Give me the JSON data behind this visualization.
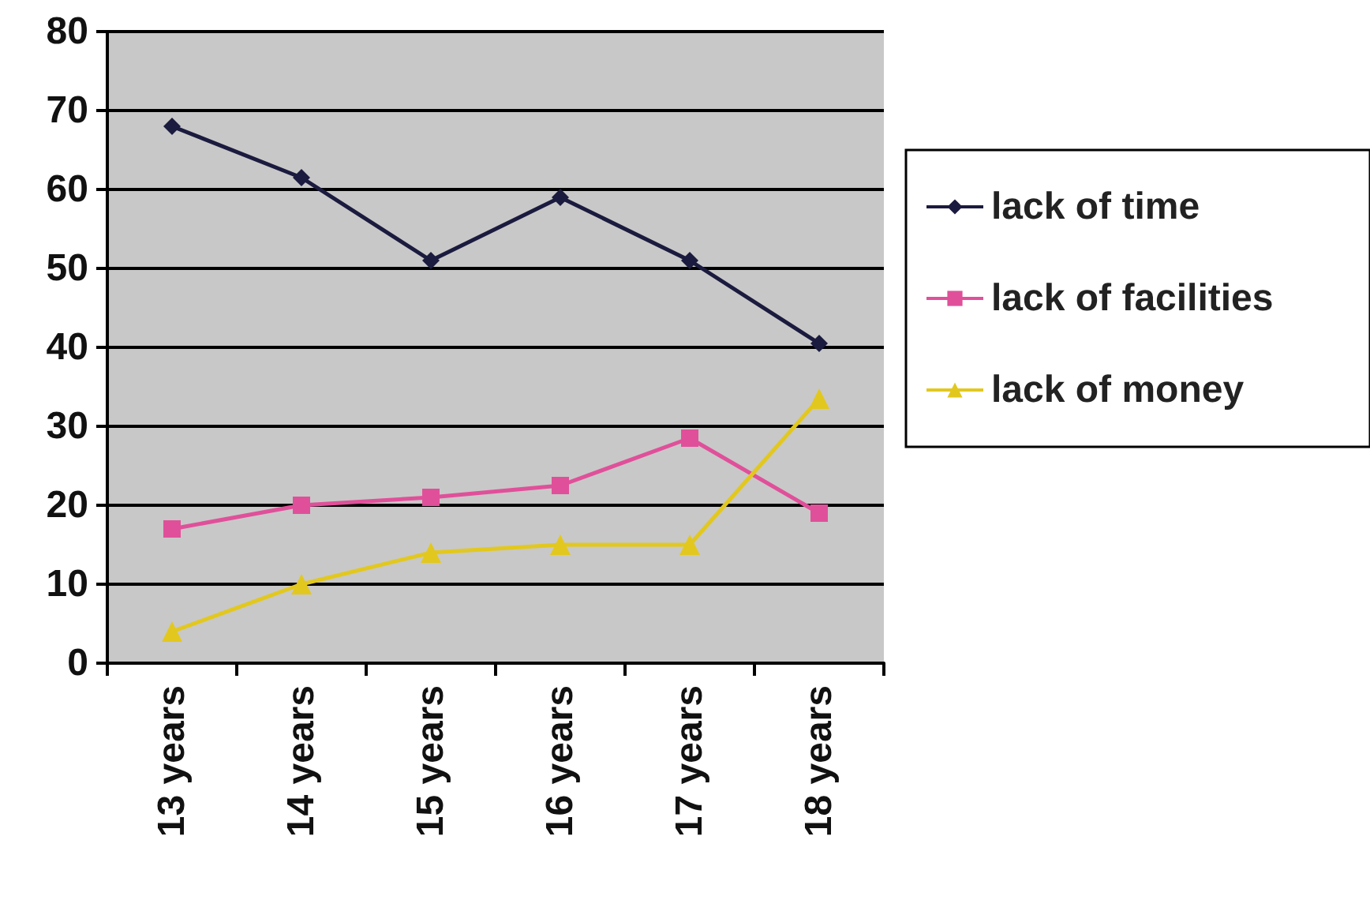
{
  "chart_data": {
    "type": "line",
    "categories": [
      "13 years",
      "14 years",
      "15 years",
      "16 years",
      "17 years",
      "18 years"
    ],
    "series": [
      {
        "name": "lack of time",
        "color": "#1b1b3f",
        "marker": "diamond",
        "values": [
          68,
          61.5,
          51,
          59,
          51,
          40.5
        ]
      },
      {
        "name": "lack of facilities",
        "color": "#e0509a",
        "marker": "square",
        "values": [
          17,
          20,
          21,
          22.5,
          28.5,
          19
        ]
      },
      {
        "name": "lack of money",
        "color": "#e2c81e",
        "marker": "triangle",
        "values": [
          4,
          10,
          14,
          15,
          15,
          33.5
        ]
      }
    ],
    "ylim": [
      0,
      80
    ],
    "yticks": [
      0,
      10,
      20,
      30,
      40,
      50,
      60,
      70,
      80
    ],
    "grid": "y",
    "legend": "right"
  }
}
